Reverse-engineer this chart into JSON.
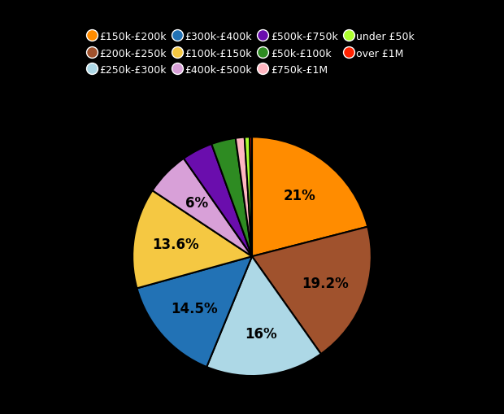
{
  "labels": [
    "£150k-£200k",
    "£200k-£250k",
    "£250k-£300k",
    "£300k-£400k",
    "£100k-£150k",
    "£400k-£500k",
    "£500k-£750k",
    "£50k-£100k",
    "£750k-£1M",
    "under £50k",
    "over £1M"
  ],
  "values": [
    21.0,
    19.2,
    16.0,
    14.5,
    13.6,
    6.0,
    4.2,
    3.3,
    1.2,
    0.7,
    0.3
  ],
  "colors": [
    "#FF8C00",
    "#A0522D",
    "#ADD8E6",
    "#2272B5",
    "#F5C842",
    "#D8A0D8",
    "#6A0DAD",
    "#2E8B22",
    "#FFB6C1",
    "#ADFF2F",
    "#FF2200"
  ],
  "text_labels": [
    "21%",
    "19.2%",
    "16%",
    "14.5%",
    "13.6%",
    "6%",
    "",
    "",
    "",
    "",
    ""
  ],
  "background_color": "#000000",
  "text_color": "#000000",
  "legend_ncol": 4
}
